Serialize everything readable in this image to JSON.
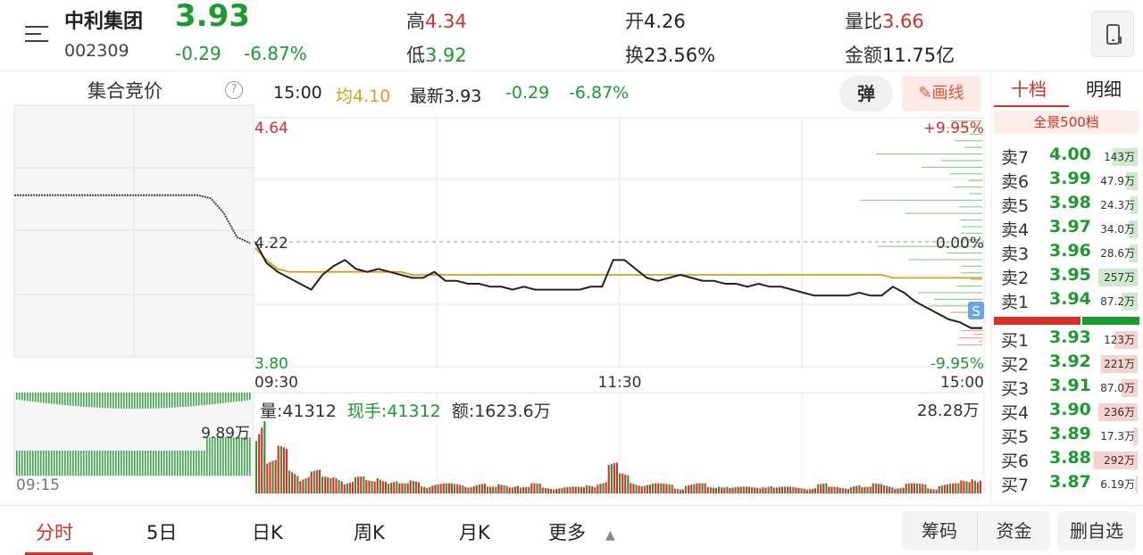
{
  "header": {
    "name": "中利集团",
    "code": "002309",
    "price": "3.93",
    "change": "-0.29",
    "change_pct": "-6.87%",
    "high_label": "高",
    "high": "4.34",
    "low_label": "低",
    "low": "3.92",
    "open_label": "开",
    "open": "4.26",
    "turnover_label": "换",
    "turnover": "23.56%",
    "vol_ratio_label": "量比",
    "vol_ratio": "3.66",
    "amount_label": "金额",
    "amount": "11.75亿",
    "menu_icon": "menu-icon",
    "device_icon": "phone-icon"
  },
  "auction": {
    "title": "集合竞价",
    "help": "?",
    "vol_label": "9.89万",
    "time_label": "09:15"
  },
  "info": {
    "time": "15:00",
    "avg": "均4.10",
    "last": "最新3.93",
    "change": "-0.29",
    "pct": "-6.87%",
    "tan_btn": "弹",
    "draw_btn": "画线"
  },
  "chart": {
    "price_high": "4.64",
    "price_mid": "4.22",
    "price_low": "3.80",
    "pct_high": "+9.95%",
    "pct_mid": "0.00%",
    "pct_low": "-9.95%",
    "time_start": "09:30",
    "time_mid": "11:30",
    "time_end": "15:00",
    "s_marker": "S"
  },
  "volume": {
    "vol_label": "量:",
    "vol_value": "41312",
    "hand_label": "现手:",
    "hand_value": "41312",
    "amount_label": "额:",
    "amount_value": "1623.6万",
    "max": "28.28万"
  },
  "chart_data": {
    "type": "line",
    "title": "",
    "xlabel": "",
    "ylabel": "",
    "ylim": [
      3.8,
      4.64
    ],
    "x_ticks": [
      "09:30",
      "11:30",
      "15:00"
    ],
    "series": [
      {
        "name": "",
        "values": [
          4.22,
          4.15,
          4.12,
          4.1,
          4.08,
          4.06,
          4.11,
          4.14,
          4.16,
          4.13,
          4.12,
          4.13,
          4.12,
          4.11,
          4.1,
          4.1,
          4.12,
          4.09,
          4.09,
          4.08,
          4.08,
          4.07,
          4.07,
          4.06,
          4.07,
          4.06,
          4.06,
          4.06,
          4.06,
          4.06,
          4.07,
          4.07,
          4.16,
          4.16,
          4.13,
          4.1,
          4.09,
          4.1,
          4.11,
          4.1,
          4.09,
          4.09,
          4.08,
          4.08,
          4.07,
          4.08,
          4.07,
          4.07,
          4.06,
          4.05,
          4.04,
          4.04,
          4.04,
          4.04,
          4.05,
          4.04,
          4.04,
          4.07,
          4.05,
          4.02,
          4.0,
          3.98,
          3.96,
          3.95,
          3.93,
          3.93
        ]
      },
      {
        "name": "均",
        "values": [
          4.2,
          4.16,
          4.13,
          4.12,
          4.12,
          4.12,
          4.12,
          4.12,
          4.12,
          4.12,
          4.12,
          4.12,
          4.12,
          4.12,
          4.11,
          4.11,
          4.11,
          4.11,
          4.11,
          4.11,
          4.11,
          4.11,
          4.11,
          4.11,
          4.11,
          4.11,
          4.11,
          4.11,
          4.11,
          4.11,
          4.11,
          4.11,
          4.11,
          4.11,
          4.11,
          4.11,
          4.11,
          4.11,
          4.11,
          4.11,
          4.11,
          4.11,
          4.11,
          4.11,
          4.11,
          4.11,
          4.11,
          4.11,
          4.11,
          4.11,
          4.11,
          4.11,
          4.11,
          4.11,
          4.11,
          4.11,
          4.11,
          4.1,
          4.1,
          4.1,
          4.1,
          4.1,
          4.1,
          4.1,
          4.1,
          4.1
        ]
      }
    ],
    "auction_values": [
      4.34,
      4.34,
      4.34,
      4.34,
      4.34,
      4.34,
      4.34,
      4.34,
      4.34,
      4.34,
      4.34,
      4.34,
      4.34,
      4.34,
      4.34,
      4.33,
      4.28,
      4.2,
      4.18
    ],
    "volume_values": [
      28,
      10,
      14,
      8,
      6,
      7,
      5,
      6,
      4,
      5,
      4,
      6,
      4,
      3,
      4,
      3,
      3,
      3,
      3,
      3,
      3,
      2,
      3,
      3,
      2,
      3,
      2,
      2,
      2,
      2,
      3,
      4,
      9,
      6,
      4,
      3,
      3,
      3,
      2,
      3,
      3,
      2,
      3,
      2,
      2,
      2,
      3,
      2,
      2,
      2,
      2,
      3,
      2,
      2,
      3,
      2,
      3,
      3,
      2,
      3,
      3,
      2,
      3,
      3,
      4,
      6
    ],
    "volume_ylim": [
      0,
      28.28
    ]
  },
  "orderbook": {
    "tab_active": "十档",
    "tab_other": "明细",
    "sub": "全景500档",
    "asks": [
      {
        "label": "卖7",
        "price": "4.00",
        "vol": "143万",
        "fill": 0.55
      },
      {
        "label": "卖6",
        "price": "3.99",
        "vol": "47.9万",
        "fill": 0.25
      },
      {
        "label": "卖5",
        "price": "3.98",
        "vol": "24.3万",
        "fill": 0.15
      },
      {
        "label": "卖4",
        "price": "3.97",
        "vol": "34.0万",
        "fill": 0.2
      },
      {
        "label": "卖3",
        "price": "3.96",
        "vol": "28.6万",
        "fill": 0.18
      },
      {
        "label": "卖2",
        "price": "3.95",
        "vol": "257万",
        "fill": 0.85
      },
      {
        "label": "卖1",
        "price": "3.94",
        "vol": "87.2万",
        "fill": 0.35
      }
    ],
    "bids": [
      {
        "label": "买1",
        "price": "3.93",
        "vol": "123万",
        "fill": 0.5
      },
      {
        "label": "买2",
        "price": "3.92",
        "vol": "221万",
        "fill": 0.8
      },
      {
        "label": "买3",
        "price": "3.91",
        "vol": "87.0万",
        "fill": 0.35
      },
      {
        "label": "买4",
        "price": "3.90",
        "vol": "236万",
        "fill": 0.85
      },
      {
        "label": "买5",
        "price": "3.89",
        "vol": "17.3万",
        "fill": 0.1
      },
      {
        "label": "买6",
        "price": "3.88",
        "vol": "292万",
        "fill": 0.95
      },
      {
        "label": "买7",
        "price": "3.87",
        "vol": "6.19万",
        "fill": 0.05
      }
    ],
    "ask_color": "#cfe9cf",
    "bid_color": "#f7d3d0"
  },
  "bottom_nav": {
    "tabs": [
      "分时",
      "5日",
      "日K",
      "周K",
      "月K",
      "更多"
    ],
    "btn_chip": "筹码",
    "btn_fund": "资金",
    "btn_remove": "删自选"
  },
  "colors": {
    "up": "#d93025",
    "down": "#1a9c2e",
    "avg": "#d4a017"
  }
}
